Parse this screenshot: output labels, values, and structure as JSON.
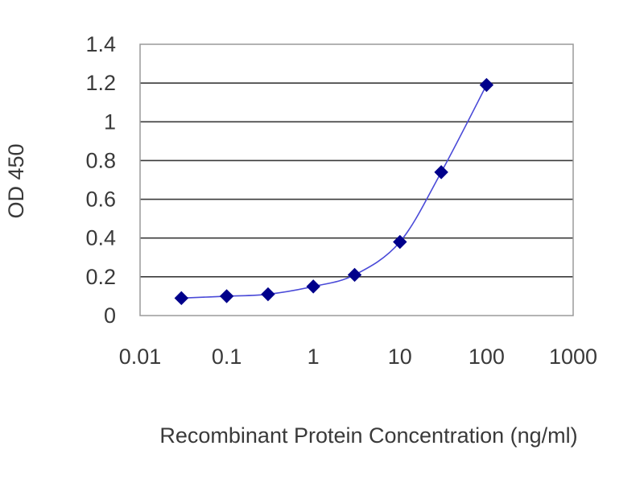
{
  "chart_data": {
    "type": "scatter",
    "title": "",
    "xlabel": "Recombinant Protein Concentration (ng/ml)",
    "ylabel": "OD 450",
    "x_scale": "log",
    "xlim": [
      0.01,
      1000
    ],
    "ylim": [
      0,
      1.4
    ],
    "x_ticks": [
      "0.01",
      "0.1",
      "1",
      "10",
      "100",
      "1000"
    ],
    "y_ticks": [
      "0",
      "0.2",
      "0.4",
      "0.6",
      "0.8",
      "1",
      "1.2",
      "1.4"
    ],
    "grid": "horizontal",
    "legend": "none",
    "series": [
      {
        "x": [
          0.03,
          0.1,
          0.3,
          1,
          3,
          10,
          30,
          100
        ],
        "y": [
          0.09,
          0.1,
          0.11,
          0.15,
          0.21,
          0.38,
          0.74,
          1.19
        ],
        "color": "#00008b",
        "line_color": "#4a4ad8",
        "marker": "diamond",
        "smooth": true
      }
    ]
  }
}
